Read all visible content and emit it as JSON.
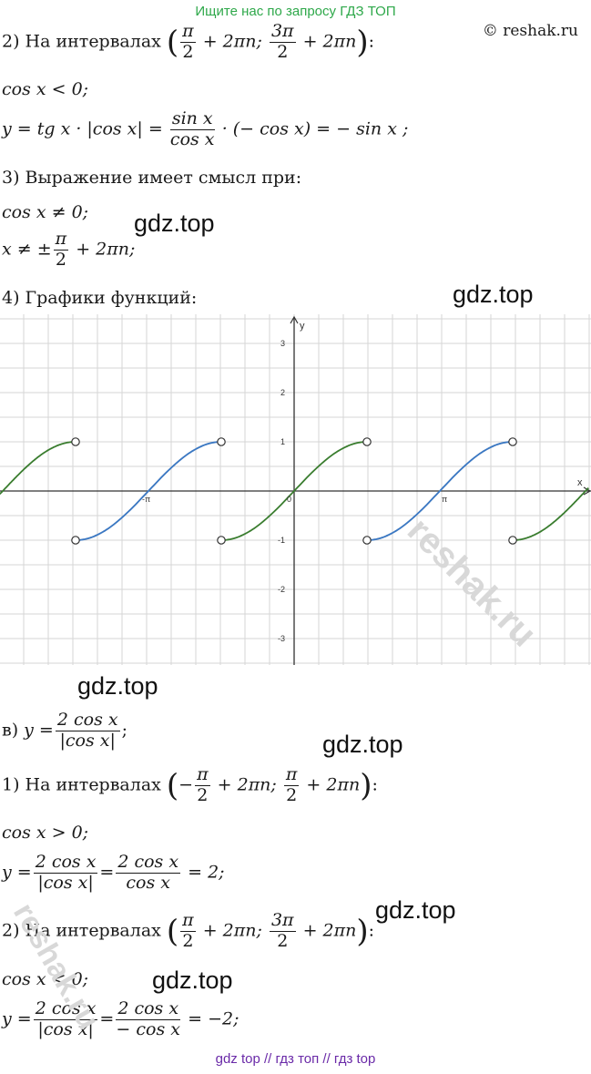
{
  "banner": "Ищите нас по запросу ГДЗ ТОП",
  "copyright": "© reshak.ru",
  "section_b2": {
    "prefix": "2) На интервалах",
    "a_num": "π",
    "a_den": "2",
    "a_tail": "+ 2πn;",
    "b_num": "3π",
    "b_den": "2",
    "b_tail": "+ 2πn",
    "suffix": ":",
    "cond": "cos x < 0;",
    "eq_lhs": "y = tg x · |cos x| =",
    "eq_frac_num": "sin x",
    "eq_frac_den": "cos x",
    "eq_rhs": "· (− cos x) = − sin x ;"
  },
  "section_b3": {
    "title": "3) Выражение имеет смысл при:",
    "cond": "cos x ≠ 0;",
    "x_lhs": "x ≠ ±",
    "x_num": "π",
    "x_den": "2",
    "x_tail": "+ 2πn;"
  },
  "section_b4": {
    "title": "4) Графики функций:"
  },
  "graph": {
    "x_axis_label": "x",
    "y_axis_label": "y",
    "y_ticks": [
      "3",
      "2",
      "1",
      "-1",
      "-2",
      "-3"
    ],
    "origin_label": "0",
    "x_tick_neg_pi": "-π",
    "x_tick_pi": "π",
    "colors": {
      "green": "#3a7d2f",
      "blue": "#3a78c4",
      "gray": "#c8c8c8",
      "grid": "#d6d6d6",
      "axis": "#333333"
    }
  },
  "section_v": {
    "label": "в)",
    "eq_lhs": "y =",
    "num": "2 cos x",
    "den": "|cos x|",
    "tail": ";"
  },
  "section_v1": {
    "prefix": "1) На интервалах",
    "a_sign": "−",
    "a_num": "π",
    "a_den": "2",
    "a_tail": "+ 2πn;",
    "b_num": "π",
    "b_den": "2",
    "b_tail": "+ 2πn",
    "suffix": ":",
    "cond": "cos x > 0;",
    "eq_lhs": "y =",
    "f1_num": "2 cos x",
    "f1_den": "|cos x|",
    "f2_num": "2 cos x",
    "f2_den": "cos x",
    "eq_rhs": "= 2;"
  },
  "section_v2": {
    "prefix": "2) На интервалах",
    "a_num": "π",
    "a_den": "2",
    "a_tail": "+ 2πn;",
    "b_num": "3π",
    "b_den": "2",
    "b_tail": "+ 2πn",
    "suffix": ":",
    "cond": "cos x < 0;",
    "eq_lhs": "y =",
    "f1_num": "2 cos x",
    "f1_den": "|cos x|",
    "f2_num": "2 cos x",
    "f2_den": "− cos x",
    "eq_rhs": "= −2;"
  },
  "watermarks": {
    "gdz": "gdz.top",
    "reshak": "reshak.ru"
  },
  "footer": "gdz top  //  гдз топ  //  гдз top"
}
